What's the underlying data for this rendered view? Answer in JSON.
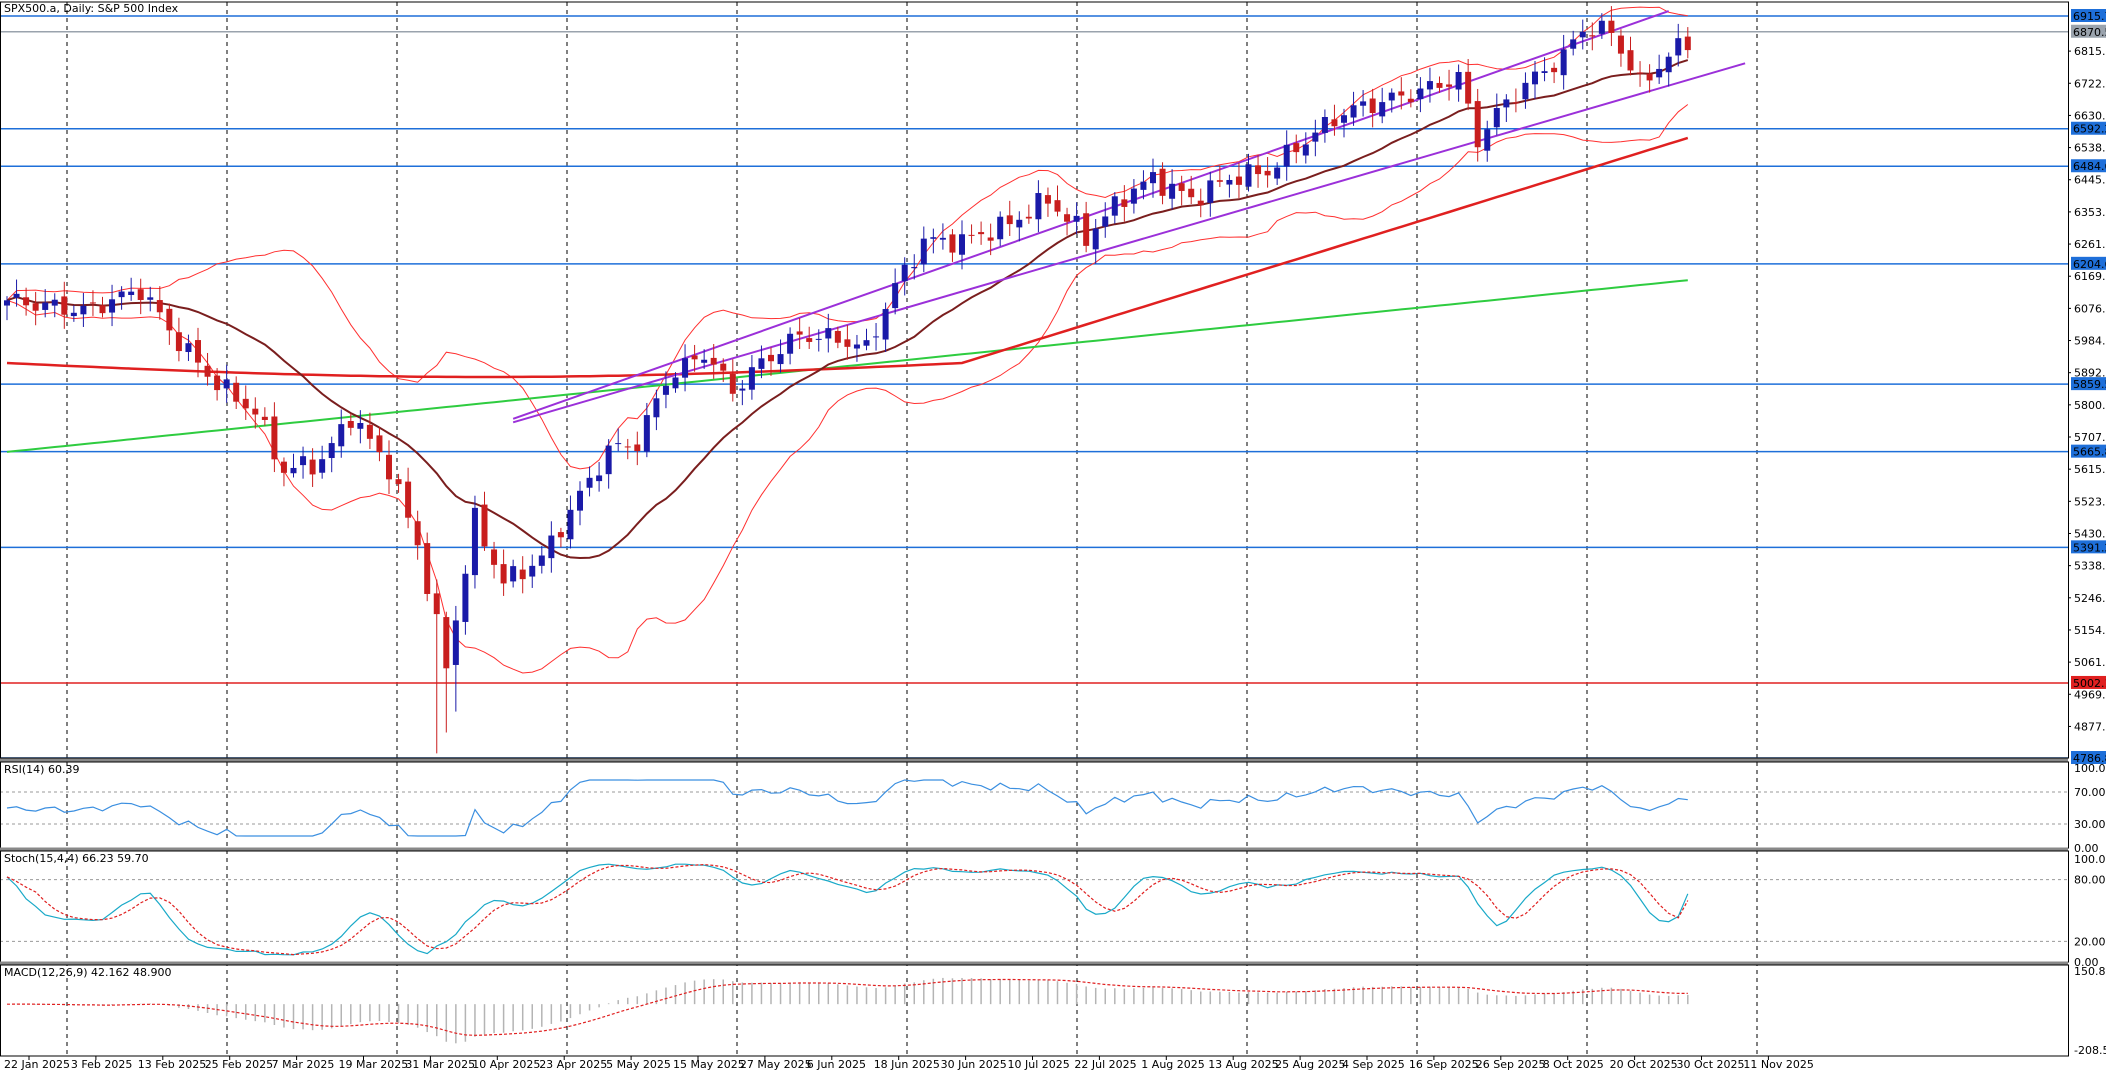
{
  "chart_data": {
    "type": "candlestick",
    "title": "SPX500.a, Daily: S&P 500 Index",
    "price_axis": {
      "ylim": [
        4786.8,
        6915.75
      ],
      "tick_labels": [
        "6815.04",
        "6722.77",
        "6630.50",
        "6538.23",
        "6445.96",
        "6353.69",
        "6261.41",
        "6169.15",
        "6076.88",
        "5984.61",
        "5892.34",
        "5800.07",
        "5707.80",
        "5615.53",
        "5523.26",
        "5430.99",
        "5338.72",
        "5246.45",
        "5154.18",
        "5061.91",
        "4969.64",
        "4877.37"
      ],
      "grid": true
    },
    "price_level_labels": [
      {
        "value": "6915.75",
        "color": "#1e6fd9"
      },
      {
        "value": "6870.55",
        "color": "#9aa3ad"
      },
      {
        "value": "6592.25",
        "color": "#1e6fd9"
      },
      {
        "value": "6484.67",
        "color": "#1e6fd9"
      },
      {
        "value": "6204.67",
        "color": "#1e6fd9"
      },
      {
        "value": "5859.51",
        "color": "#1e6fd9"
      },
      {
        "value": "5665.80",
        "color": "#1e6fd9"
      },
      {
        "value": "5391.20",
        "color": "#1e6fd9"
      },
      {
        "value": "5002.13",
        "color": "#e02020"
      },
      {
        "value": "4786.80",
        "color": "#1e6fd9"
      }
    ],
    "x_axis": {
      "tick_labels": [
        "22 Jan 2025",
        "3 Feb 2025",
        "13 Feb 2025",
        "25 Feb 2025",
        "7 Mar 2025",
        "19 Mar 2025",
        "31 Mar 2025",
        "10 Apr 2025",
        "23 Apr 2025",
        "5 May 2025",
        "15 May 2025",
        "27 May 2025",
        "6 Jun 2025",
        "18 Jun 2025",
        "30 Jun 2025",
        "10 Jul 2025",
        "22 Jul 2025",
        "1 Aug 2025",
        "13 Aug 2025",
        "25 Aug 2025",
        "4 Sep 2025",
        "16 Sep 2025",
        "26 Sep 2025",
        "8 Oct 2025",
        "20 Oct 2025",
        "30 Oct 2025",
        "11 Nov 2025"
      ]
    },
    "ohlc_close_anchors": [
      [
        0,
        6100
      ],
      [
        8,
        6070
      ],
      [
        14,
        6130
      ],
      [
        18,
        5980
      ],
      [
        22,
        5860
      ],
      [
        26,
        5780
      ],
      [
        29,
        5610
      ],
      [
        33,
        5640
      ],
      [
        36,
        5770
      ],
      [
        40,
        5620
      ],
      [
        43,
        5400
      ],
      [
        46,
        5050
      ],
      [
        49,
        5470
      ],
      [
        52,
        5290
      ],
      [
        56,
        5360
      ],
      [
        60,
        5540
      ],
      [
        63,
        5670
      ],
      [
        66,
        5690
      ],
      [
        69,
        5870
      ],
      [
        73,
        5950
      ],
      [
        76,
        5840
      ],
      [
        79,
        5920
      ],
      [
        83,
        6000
      ],
      [
        87,
        5990
      ],
      [
        90,
        5960
      ],
      [
        93,
        6140
      ],
      [
        96,
        6270
      ],
      [
        100,
        6270
      ],
      [
        105,
        6320
      ],
      [
        109,
        6390
      ],
      [
        113,
        6280
      ],
      [
        117,
        6400
      ],
      [
        120,
        6450
      ],
      [
        124,
        6390
      ],
      [
        128,
        6450
      ],
      [
        132,
        6470
      ],
      [
        136,
        6560
      ],
      [
        140,
        6640
      ],
      [
        144,
        6670
      ],
      [
        148,
        6700
      ],
      [
        152,
        6740
      ],
      [
        154,
        6560
      ],
      [
        157,
        6670
      ],
      [
        160,
        6740
      ],
      [
        163,
        6800
      ],
      [
        165,
        6880
      ],
      [
        168,
        6870
      ],
      [
        171,
        6720
      ],
      [
        174,
        6800
      ],
      [
        176,
        6845
      ]
    ],
    "series": [
      {
        "name": "",
        "kind": "sma-short",
        "color": "#7a1e1e"
      },
      {
        "name": "",
        "kind": "sma-100",
        "color": "#e02020"
      },
      {
        "name": "",
        "kind": "sma-200",
        "color": "#2ecc40"
      },
      {
        "name": "",
        "kind": "bollinger",
        "color": "#ff3030"
      },
      {
        "name": "",
        "kind": "channel",
        "color": "#9b30d9"
      }
    ],
    "indicators": {
      "rsi": {
        "label": "RSI(14) 60.39",
        "levels": [
          "100.00",
          "70.00",
          "30.00",
          "0.00"
        ],
        "last": 60.39
      },
      "stoch": {
        "label": "Stoch(15,4,4) 66.23 59.70",
        "levels": [
          "100.00",
          "80.00",
          "20.00",
          "0.00"
        ],
        "k": 66.23,
        "d": 59.7
      },
      "macd": {
        "label": "MACD(12,26,9) 42.162 48.900",
        "levels": [
          "150.803",
          "-208.536"
        ],
        "macd": 42.162,
        "signal": 48.9
      }
    }
  },
  "colors": {
    "bull": "#1a1aa8",
    "bear": "#c81e1e",
    "grid": "#000000",
    "hline": "#1e6fd9",
    "support_red": "#e02020",
    "rsi": "#3b8fe0",
    "stoch_k": "#19a9c8",
    "stoch_d": "#e02020",
    "macd_hist": "#b4b4b4",
    "macd_signal": "#e02020"
  }
}
